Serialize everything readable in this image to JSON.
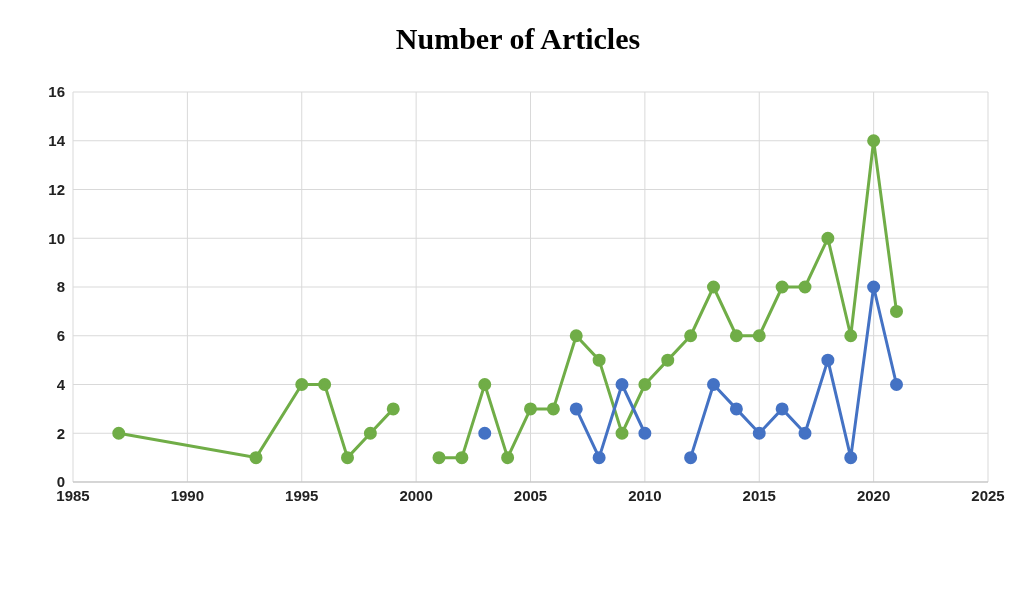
{
  "chart_data": {
    "type": "line",
    "title": "Number of Articles",
    "xlim": [
      1985,
      2025
    ],
    "xticks": [
      1985,
      1990,
      1995,
      2000,
      2005,
      2010,
      2015,
      2020,
      2025
    ],
    "ylim": [
      0,
      16
    ],
    "yticks": [
      0,
      2,
      4,
      6,
      8,
      10,
      12,
      14,
      16
    ],
    "grid": true,
    "marker": "circle",
    "line_style": "solid",
    "series": [
      {
        "color": "#70ad47",
        "x": [
          1987,
          1993,
          1995,
          1996,
          1997,
          1998,
          1999,
          2000,
          2001,
          2002,
          2003,
          2004,
          2005,
          2006,
          2007,
          2008,
          2009,
          2010,
          2011,
          2012,
          2013,
          2014,
          2015,
          2016,
          2017,
          2018,
          2019,
          2020,
          2021
        ],
        "values": [
          2,
          1,
          4,
          4,
          1,
          2,
          3,
          null,
          1,
          1,
          4,
          1,
          3,
          3,
          6,
          5,
          2,
          4,
          5,
          6,
          8,
          6,
          6,
          8,
          8,
          10,
          6,
          14,
          7
        ]
      },
      {
        "color": "#4472c4",
        "x": [
          2003,
          2005,
          2007,
          2008,
          2009,
          2010,
          2011,
          2012,
          2013,
          2014,
          2015,
          2016,
          2017,
          2018,
          2019,
          2020,
          2021
        ],
        "values": [
          2,
          null,
          3,
          1,
          4,
          2,
          null,
          1,
          4,
          3,
          2,
          3,
          2,
          5,
          1,
          8,
          4
        ]
      }
    ]
  }
}
